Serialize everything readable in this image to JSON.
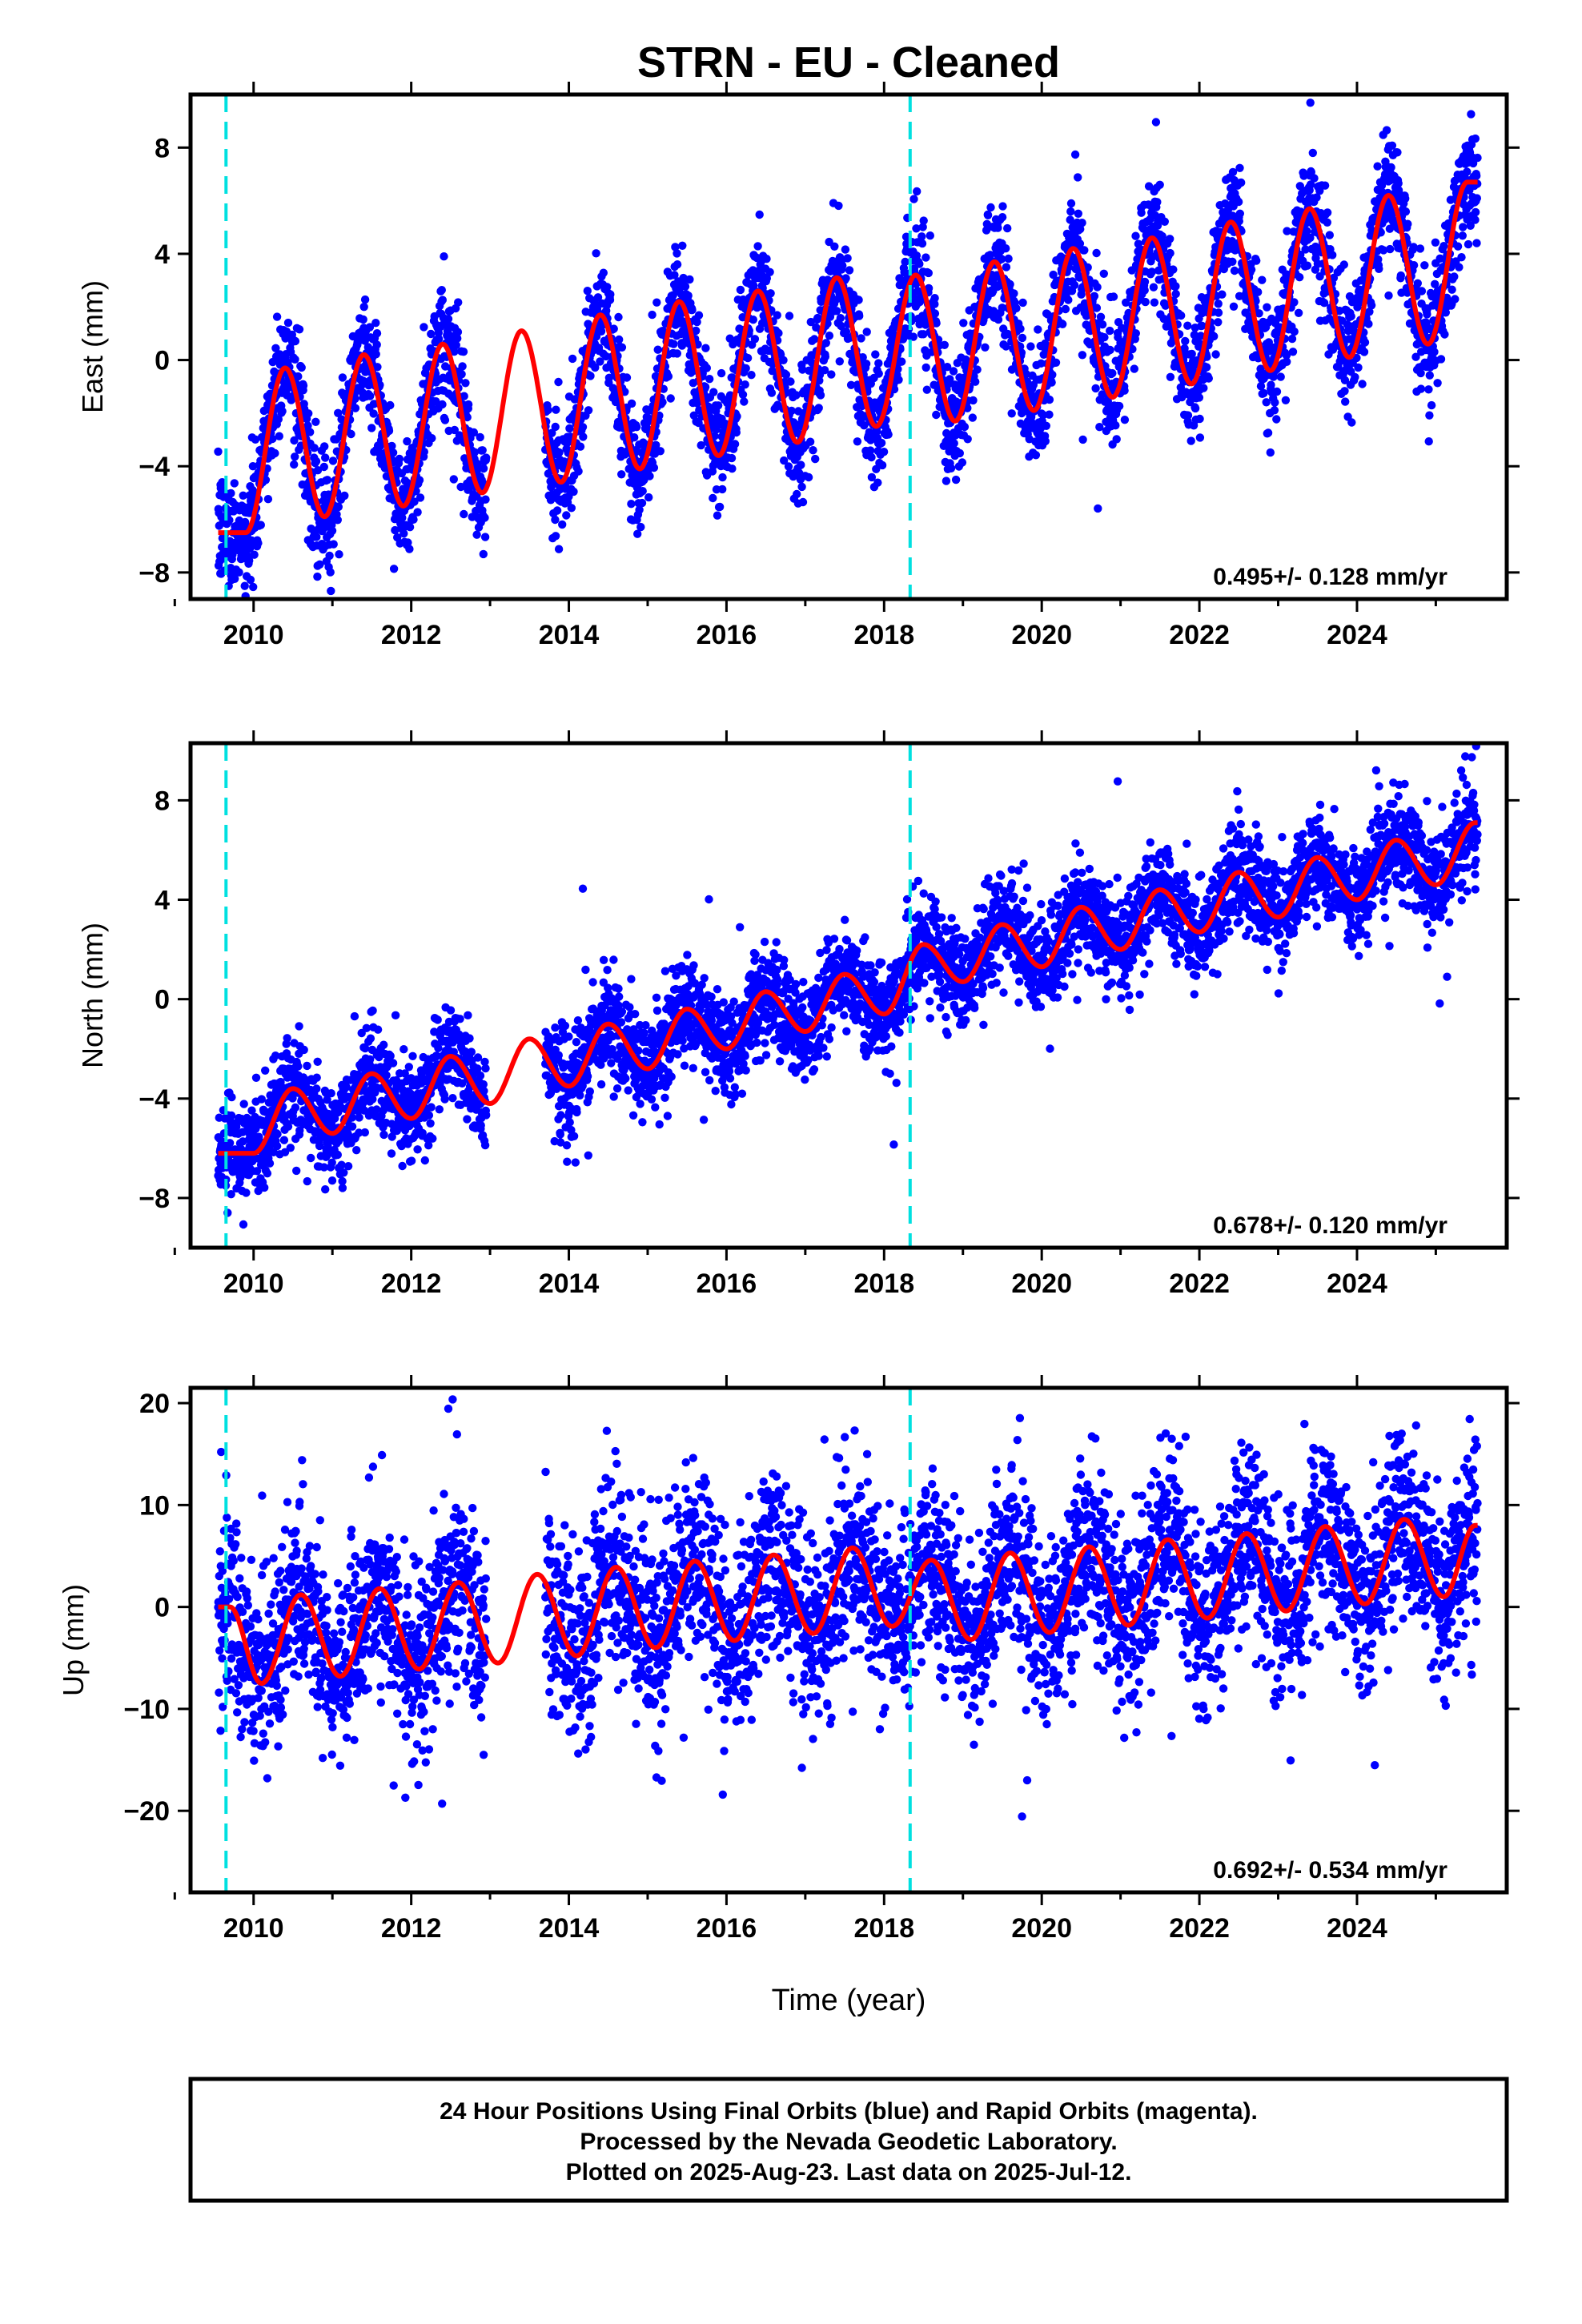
{
  "title": "STRN  - EU - Cleaned",
  "xlabel": "Time (year)",
  "footer_lines": [
    "24 Hour Positions Using Final Orbits (blue) and Rapid Orbits (magenta).",
    "Processed by the Nevada Geodetic Laboratory.",
    "Plotted on 2025-Aug-23. Last data on 2025-Jul-12."
  ],
  "colors": {
    "points": "#0000ff",
    "model": "#ff0000",
    "equipment_change": "#00e0e0"
  },
  "chart_data": [
    {
      "type": "scatter",
      "component": "east",
      "ylabel": "East (mm)",
      "rate": "0.495+/- 0.128 mm/yr",
      "xlim": [
        2009.2,
        2025.9
      ],
      "ylim": [
        -9,
        10
      ],
      "xticks": [
        2010,
        2012,
        2014,
        2016,
        2018,
        2020,
        2022,
        2024
      ],
      "yticks": [
        -8,
        -4,
        0,
        4,
        8
      ],
      "tick_labels_x": [
        "2010",
        "2012",
        "2014",
        "2016",
        "2018",
        "2020",
        "2022",
        "2024"
      ],
      "tick_labels_y": [
        "−8",
        "−4",
        "0",
        "4",
        "8"
      ],
      "offsets": [
        2009.65,
        2018.33
      ],
      "data_gap": [
        2012.95,
        2013.7
      ],
      "model_peaks": [
        [
          2010.4,
          -0.3
        ],
        [
          2011.4,
          0.2
        ],
        [
          2012.4,
          0.6
        ],
        [
          2013.4,
          1.1
        ],
        [
          2014.4,
          1.7
        ],
        [
          2015.4,
          2.2
        ],
        [
          2016.4,
          2.6
        ],
        [
          2017.4,
          3.1
        ],
        [
          2018.4,
          3.2
        ],
        [
          2019.4,
          3.7
        ],
        [
          2020.4,
          4.2
        ],
        [
          2021.4,
          4.6
        ],
        [
          2022.4,
          5.2
        ],
        [
          2023.4,
          5.7
        ],
        [
          2024.4,
          6.2
        ],
        [
          2025.4,
          6.7
        ]
      ],
      "model_troughs": [
        [
          2009.9,
          -6.5
        ],
        [
          2010.9,
          -5.9
        ],
        [
          2011.9,
          -5.5
        ],
        [
          2012.9,
          -5.0
        ],
        [
          2013.9,
          -4.6
        ],
        [
          2014.9,
          -4.1
        ],
        [
          2015.9,
          -3.6
        ],
        [
          2016.9,
          -3.1
        ],
        [
          2017.9,
          -2.5
        ],
        [
          2018.9,
          -2.3
        ],
        [
          2019.9,
          -1.9
        ],
        [
          2020.9,
          -1.4
        ],
        [
          2021.9,
          -0.9
        ],
        [
          2022.9,
          -0.4
        ],
        [
          2023.9,
          0.1
        ],
        [
          2024.9,
          0.6
        ]
      ],
      "scatter_sigma": 1.1
    },
    {
      "type": "scatter",
      "component": "north",
      "ylabel": "North (mm)",
      "rate": "0.678+/- 0.120 mm/yr",
      "xlim": [
        2009.2,
        2025.9
      ],
      "ylim": [
        -10,
        10.3
      ],
      "xticks": [
        2010,
        2012,
        2014,
        2016,
        2018,
        2020,
        2022,
        2024
      ],
      "yticks": [
        -8,
        -4,
        0,
        4,
        8
      ],
      "tick_labels_x": [
        "2010",
        "2012",
        "2014",
        "2016",
        "2018",
        "2020",
        "2022",
        "2024"
      ],
      "tick_labels_y": [
        "−8",
        "−4",
        "0",
        "4",
        "8"
      ],
      "offsets": [
        2009.65,
        2018.33
      ],
      "data_gap": [
        2012.95,
        2013.7
      ],
      "model_peaks": [
        [
          2010.5,
          -3.6
        ],
        [
          2011.5,
          -3.0
        ],
        [
          2012.5,
          -2.3
        ],
        [
          2013.5,
          -1.6
        ],
        [
          2014.5,
          -1.0
        ],
        [
          2015.5,
          -0.4
        ],
        [
          2016.5,
          0.3
        ],
        [
          2017.5,
          1.0
        ],
        [
          2018.5,
          2.2
        ],
        [
          2019.5,
          3.0
        ],
        [
          2020.5,
          3.7
        ],
        [
          2021.5,
          4.4
        ],
        [
          2022.5,
          5.1
        ],
        [
          2023.5,
          5.7
        ],
        [
          2024.5,
          6.4
        ],
        [
          2025.5,
          7.1
        ]
      ],
      "model_troughs": [
        [
          2010.0,
          -6.2
        ],
        [
          2011.0,
          -5.4
        ],
        [
          2012.0,
          -4.8
        ],
        [
          2013.0,
          -4.2
        ],
        [
          2014.0,
          -3.5
        ],
        [
          2015.0,
          -2.8
        ],
        [
          2016.0,
          -2.0
        ],
        [
          2017.0,
          -1.3
        ],
        [
          2018.0,
          -0.6
        ],
        [
          2019.0,
          0.7
        ],
        [
          2020.0,
          1.3
        ],
        [
          2021.0,
          2.0
        ],
        [
          2022.0,
          2.7
        ],
        [
          2023.0,
          3.3
        ],
        [
          2024.0,
          4.0
        ],
        [
          2025.0,
          4.6
        ]
      ],
      "scatter_sigma": 1.0
    },
    {
      "type": "scatter",
      "component": "up",
      "ylabel": "Up (mm)",
      "rate": "0.692+/- 0.534 mm/yr",
      "xlim": [
        2009.2,
        2025.9
      ],
      "ylim": [
        -28,
        21.5
      ],
      "xticks": [
        2010,
        2012,
        2014,
        2016,
        2018,
        2020,
        2022,
        2024
      ],
      "yticks": [
        -20,
        -10,
        0,
        10,
        20
      ],
      "tick_labels_x": [
        "2010",
        "2012",
        "2014",
        "2016",
        "2018",
        "2020",
        "2022",
        "2024"
      ],
      "tick_labels_y": [
        "−20",
        "−10",
        "0",
        "10",
        "20"
      ],
      "offsets": [
        2009.65,
        2018.33
      ],
      "data_gap": [
        2012.95,
        2013.7
      ],
      "model_peaks": [
        [
          2009.7,
          0.0
        ],
        [
          2010.6,
          1.2
        ],
        [
          2011.6,
          1.8
        ],
        [
          2012.6,
          2.4
        ],
        [
          2013.6,
          3.2
        ],
        [
          2014.6,
          3.9
        ],
        [
          2015.6,
          4.5
        ],
        [
          2016.6,
          5.1
        ],
        [
          2017.6,
          5.8
        ],
        [
          2018.6,
          4.6
        ],
        [
          2019.6,
          5.3
        ],
        [
          2020.6,
          5.9
        ],
        [
          2021.6,
          6.6
        ],
        [
          2022.6,
          7.2
        ],
        [
          2023.6,
          7.9
        ],
        [
          2024.6,
          8.6
        ],
        [
          2025.5,
          8.0
        ]
      ],
      "model_troughs": [
        [
          2010.1,
          -7.5
        ],
        [
          2011.1,
          -6.8
        ],
        [
          2012.1,
          -6.1
        ],
        [
          2013.1,
          -5.5
        ],
        [
          2014.1,
          -4.8
        ],
        [
          2015.1,
          -4.0
        ],
        [
          2016.1,
          -3.3
        ],
        [
          2017.1,
          -2.6
        ],
        [
          2018.1,
          -1.9
        ],
        [
          2019.1,
          -3.2
        ],
        [
          2020.1,
          -2.5
        ],
        [
          2021.1,
          -1.8
        ],
        [
          2022.1,
          -1.1
        ],
        [
          2023.1,
          -0.4
        ],
        [
          2024.1,
          0.3
        ],
        [
          2025.1,
          1.0
        ]
      ],
      "scatter_sigma": 4.5
    }
  ]
}
